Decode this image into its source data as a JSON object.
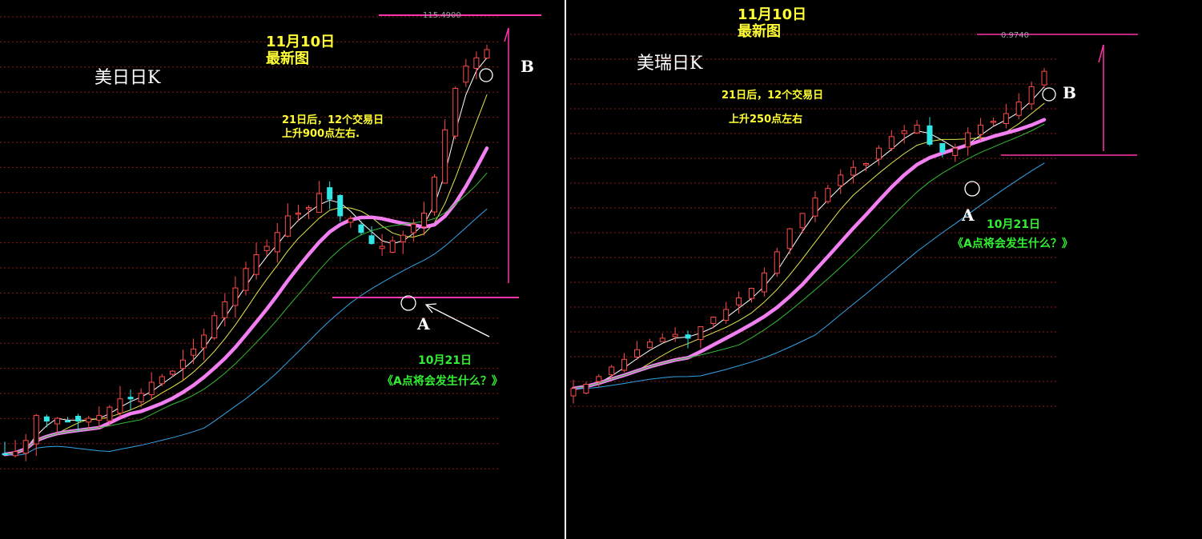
{
  "panels": [
    {
      "id": "usdjpy",
      "title": "美日日K",
      "date_line1": "11月10日",
      "date_line2": "最新图",
      "note_line1": "21日后，12个交易日",
      "note_line2": "上升900点左右.",
      "point_a": "A",
      "point_b": "B",
      "a_date": "10月21日",
      "a_question": "《A点将会发生什么？》",
      "high_price": "115.4900"
    },
    {
      "id": "usdchf",
      "title": "美瑞日K",
      "date_line1": "11月10日",
      "date_line2": "最新图",
      "note_line1": "21日后，12个交易日",
      "note_line2": "上升250点左右",
      "point_a": "A",
      "point_b": "B",
      "a_date": "10月21日",
      "a_question": "《A点将会发生什么？》",
      "high_price": "0.9740"
    }
  ],
  "colors": {
    "background": "#000000",
    "grid": "#8b1a1a",
    "up_candle": "#ff4a4a",
    "down_candle": "#33e6e6",
    "ma_main": "#f27ff2",
    "ma_white": "#ffffff",
    "ma_yellow": "#e6e64a",
    "ma_green": "#33bb33",
    "ma_blue": "#33a3e6",
    "levels": "#ff33aa",
    "divider": "#ffffff"
  },
  "chart_data": [
    {
      "type": "candlestick",
      "title": "美日日K",
      "high_label": "115.4900",
      "series": [
        {
          "name": "",
          "values": [
            100.3,
            100.4,
            100.8,
            101.7,
            101.5,
            101.6,
            101.5,
            101.5,
            101.6,
            101.7,
            102.0,
            102.3,
            102.3,
            102.5,
            102.9,
            103.1,
            103.3,
            103.7,
            104.1,
            104.6,
            105.3,
            105.8,
            106.3,
            107.0,
            107.5,
            107.8,
            108.3,
            108.9,
            109.0,
            109.2,
            109.7,
            109.5,
            108.9,
            108.8,
            108.3,
            107.9,
            107.8,
            108.0,
            108.2,
            108.6,
            109.0,
            110.3,
            112.0,
            113.5,
            114.3,
            114.6,
            114.9
          ]
        }
      ]
    },
    {
      "type": "candlestick",
      "title": "美瑞日K",
      "high_label": "0.9740",
      "series": [
        {
          "name": "",
          "values": [
            0.8874,
            0.8885,
            0.8905,
            0.893,
            0.895,
            0.8975,
            0.8995,
            0.9005,
            0.9015,
            0.9005,
            0.9035,
            0.906,
            0.908,
            0.911,
            0.9135,
            0.9175,
            0.923,
            0.929,
            0.933,
            0.937,
            0.9395,
            0.943,
            0.945,
            0.946,
            0.95,
            0.953,
            0.9545,
            0.956,
            0.951,
            0.949,
            0.95,
            0.954,
            0.956,
            0.957,
            0.959,
            0.962,
            0.966,
            0.97
          ]
        }
      ]
    }
  ]
}
